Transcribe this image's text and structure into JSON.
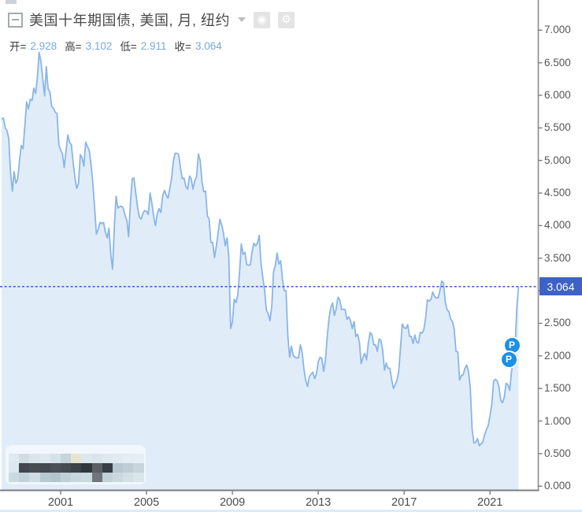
{
  "header": {
    "title": "美国十年期国债, 美国, 月, 纽约",
    "ohlc": [
      {
        "label": "开=",
        "value": "2.928"
      },
      {
        "label": "高=",
        "value": "3.102"
      },
      {
        "label": "低=",
        "value": "2.911"
      },
      {
        "label": "收=",
        "value": "3.064"
      }
    ],
    "eye_icon_glyph": "◉",
    "gear_icon_glyph": "⚙"
  },
  "chart_data": {
    "type": "area",
    "title": "美国十年期国债, 美国, 月, 纽约",
    "xlabel": "",
    "ylabel": "",
    "grid": false,
    "legend_position": "none",
    "y_range": [
      0.0,
      7.0
    ],
    "y_tick_step": 0.5,
    "y_tick_labels": [
      "7.000",
      "6.500",
      "6.000",
      "5.500",
      "5.000",
      "4.500",
      "4.000",
      "3.500",
      "3.000",
      "2.500",
      "2.000",
      "1.500",
      "1.000",
      "0.500",
      "0.000"
    ],
    "x_tick_years": [
      2001,
      2005,
      2009,
      2013,
      2017,
      2021
    ],
    "start_year": 1998,
    "start_month": 4,
    "frequency": "monthly",
    "last_price": 3.064,
    "last_price_label": "3.064",
    "monthly_values": [
      5.64,
      5.65,
      5.5,
      5.46,
      5.34,
      4.81,
      4.53,
      4.83,
      4.65,
      4.72,
      5.0,
      5.23,
      5.18,
      5.54,
      5.9,
      5.79,
      5.94,
      5.92,
      6.11,
      6.03,
      6.28,
      6.66,
      6.52,
      6.26,
      5.99,
      6.44,
      6.1,
      6.05,
      5.83,
      5.8,
      5.74,
      5.72,
      5.24,
      5.16,
      5.1,
      4.89,
      5.14,
      5.39,
      5.28,
      5.24,
      4.97,
      4.73,
      4.57,
      4.65,
      5.09,
      5.04,
      4.91,
      5.28,
      5.21,
      5.16,
      4.93,
      4.65,
      4.26,
      3.87,
      3.94,
      4.05,
      4.03,
      4.05,
      3.9,
      3.81,
      3.96,
      3.57,
      3.33,
      3.98,
      4.45,
      4.27,
      4.29,
      4.3,
      4.27,
      4.15,
      4.08,
      3.83,
      4.35,
      4.72,
      4.73,
      4.5,
      4.28,
      4.13,
      4.1,
      4.19,
      4.23,
      4.22,
      4.17,
      4.5,
      4.34,
      4.14,
      4.0,
      4.18,
      4.26,
      4.2,
      4.46,
      4.54,
      4.47,
      4.42,
      4.57,
      4.72,
      4.99,
      5.11,
      5.11,
      5.09,
      4.88,
      4.72,
      4.73,
      4.6,
      4.56,
      4.76,
      4.72,
      4.56,
      4.69,
      4.75,
      5.1,
      5.0,
      4.67,
      4.52,
      4.53,
      4.15,
      4.1,
      3.74,
      3.74,
      3.51,
      3.68,
      3.88,
      4.1,
      4.01,
      3.89,
      3.69,
      3.81,
      3.53,
      2.42,
      2.52,
      2.87,
      2.82,
      2.93,
      3.29,
      3.72,
      3.56,
      3.59,
      3.4,
      3.39,
      3.4,
      3.59,
      3.73,
      3.69,
      3.73,
      3.85,
      3.42,
      3.2,
      3.01,
      2.7,
      2.65,
      2.54,
      2.76,
      3.29,
      3.39,
      3.58,
      3.41,
      3.46,
      3.17,
      3.0,
      3.0,
      2.3,
      1.98,
      2.15,
      2.01,
      1.98,
      1.97,
      1.97,
      2.17,
      2.05,
      1.8,
      1.62,
      1.53,
      1.68,
      1.72,
      1.75,
      1.65,
      1.72,
      1.91,
      1.98,
      1.96,
      1.76,
      1.93,
      2.3,
      2.58,
      2.74,
      2.81,
      2.62,
      2.72,
      2.9,
      2.86,
      2.71,
      2.72,
      2.71,
      2.56,
      2.6,
      2.54,
      2.42,
      2.53,
      2.3,
      2.33,
      2.21,
      1.88,
      1.98,
      2.04,
      1.94,
      2.2,
      2.36,
      2.32,
      2.17,
      2.17,
      2.07,
      2.26,
      2.24,
      2.09,
      1.78,
      1.89,
      1.81,
      1.81,
      1.64,
      1.5,
      1.56,
      1.63,
      1.76,
      2.14,
      2.49,
      2.43,
      2.42,
      2.48,
      2.3,
      2.3,
      2.19,
      2.32,
      2.21,
      2.2,
      2.36,
      2.35,
      2.4,
      2.58,
      2.86,
      2.84,
      2.87,
      2.98,
      2.91,
      2.89,
      2.89,
      3.0,
      3.15,
      3.12,
      2.83,
      2.71,
      2.68,
      2.57,
      2.53,
      2.4,
      2.07,
      2.06,
      1.63,
      1.7,
      1.71,
      1.81,
      1.86,
      1.76,
      1.5,
      0.87,
      0.66,
      0.67,
      0.73,
      0.62,
      0.65,
      0.68,
      0.79,
      0.87,
      0.93,
      1.08,
      1.26,
      1.61,
      1.64,
      1.62,
      1.52,
      1.32,
      1.28,
      1.37,
      1.58,
      1.56,
      1.47,
      1.76,
      1.93,
      2.13,
      2.75,
      3.064
    ],
    "colors": {
      "line": "#8ab5e8",
      "fill": "#e0edf8",
      "last_price_line": "#4a63cc",
      "tag_bg": "#3e61c6",
      "axis": "#7d7d7d",
      "marker_bg": "#1c8fe6"
    }
  },
  "markers": [
    {
      "label": "P",
      "x": 650,
      "y": 438
    },
    {
      "label": "P",
      "x": 646,
      "y": 456
    }
  ],
  "watermark": {
    "rows": [
      [
        "#dfeaf0",
        "#cfdce3",
        "#dae6ec",
        "#dde9ef",
        "#d5e2e9",
        "#c6d4dc",
        "#e9e4cf",
        "#dce8ee",
        "#d9e5eb",
        "#dee9ef",
        "#e1ebf1",
        "#e3edf2",
        "#e5eef3"
      ],
      [
        "#dce8ee",
        "#41474c",
        "#474d52",
        "#42484e",
        "#4a5056",
        "#454c52",
        "#3c4247",
        "#31373c",
        "#595f65",
        "#373e44",
        "#b9c7d0",
        "#bfcdd5",
        "#c8d5dd"
      ],
      [
        "#cbd9e1",
        "#c2d2db",
        "#cedce4",
        "#b8c8d2",
        "#b2c4ce",
        "#becfd8",
        "#c7d5de",
        "#cbd9e1",
        "#6e767c",
        "#c1d1da",
        "#cbd8e0",
        "#d4e0e7",
        "#dbe6ec"
      ]
    ]
  }
}
